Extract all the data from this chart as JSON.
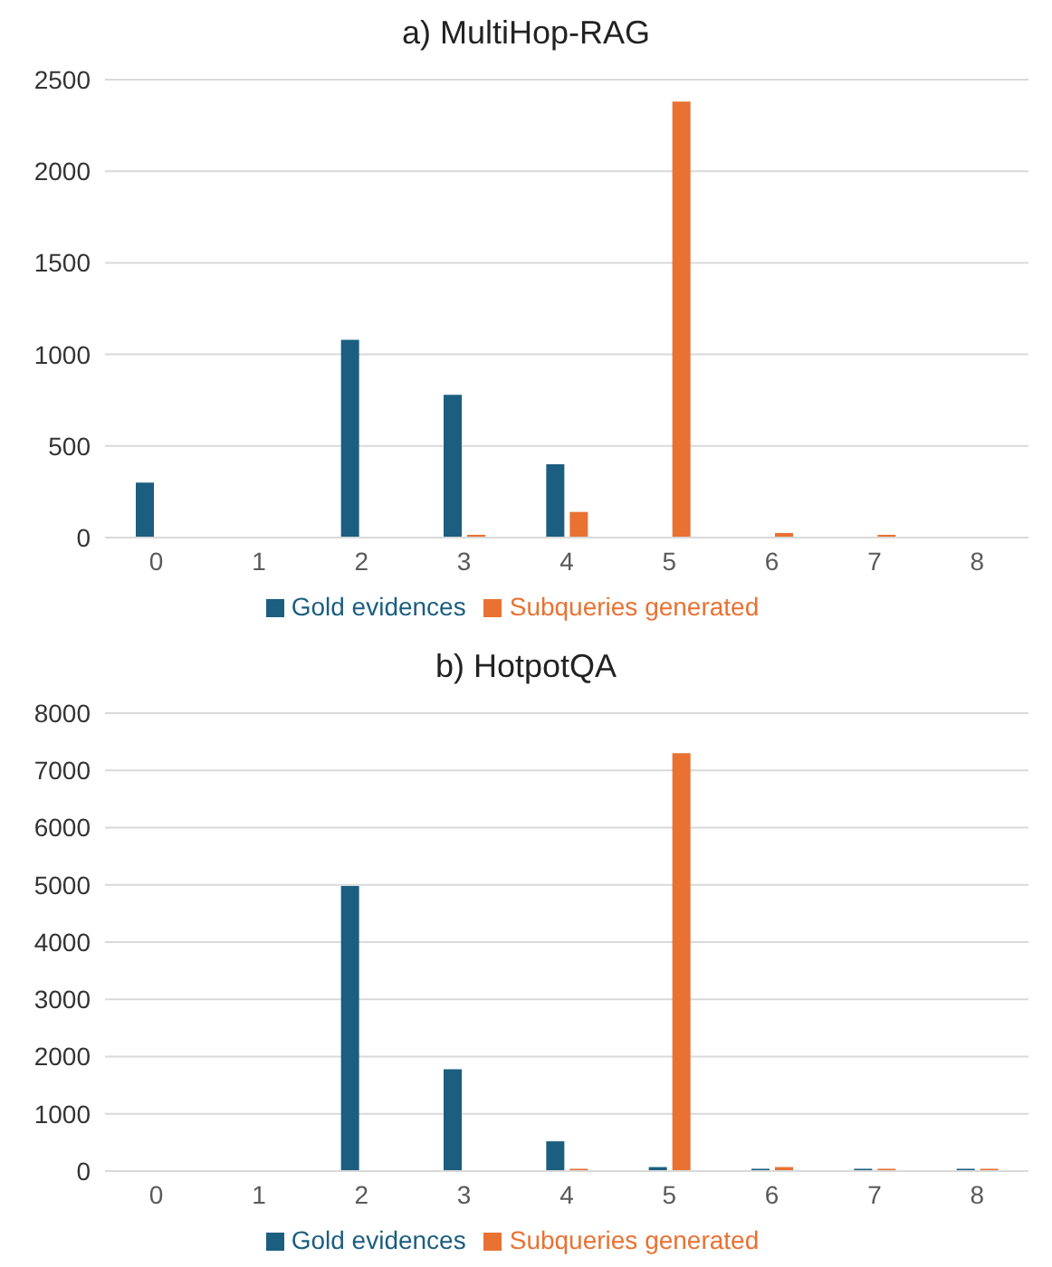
{
  "chart_data": [
    {
      "type": "bar",
      "title": "a) MultiHop-RAG",
      "categories": [
        "0",
        "1",
        "2",
        "3",
        "4",
        "5",
        "6",
        "7",
        "8"
      ],
      "series": [
        {
          "name": "Gold evidences",
          "color": "#1b5e80",
          "values": [
            300,
            0,
            1080,
            780,
            400,
            0,
            0,
            0,
            0
          ]
        },
        {
          "name": "Subqueries generated",
          "color": "#e97132",
          "values": [
            0,
            0,
            0,
            15,
            140,
            2380,
            25,
            15,
            0
          ]
        }
      ],
      "ylim": [
        0,
        2500
      ],
      "yticks": [
        0,
        500,
        1000,
        1500,
        2000,
        2500
      ],
      "grid": "y",
      "legend": "bottom"
    },
    {
      "type": "bar",
      "title": "b) HotpotQA",
      "categories": [
        "0",
        "1",
        "2",
        "3",
        "4",
        "5",
        "6",
        "7",
        "8"
      ],
      "series": [
        {
          "name": "Gold evidences",
          "color": "#1b5e80",
          "values": [
            0,
            0,
            4980,
            1780,
            520,
            70,
            40,
            40,
            40
          ]
        },
        {
          "name": "Subqueries generated",
          "color": "#e97132",
          "values": [
            0,
            0,
            0,
            0,
            40,
            7300,
            70,
            40,
            40
          ]
        }
      ],
      "ylim": [
        0,
        8000
      ],
      "yticks": [
        0,
        1000,
        2000,
        3000,
        4000,
        5000,
        6000,
        7000,
        8000
      ],
      "grid": "y",
      "legend": "bottom"
    }
  ]
}
